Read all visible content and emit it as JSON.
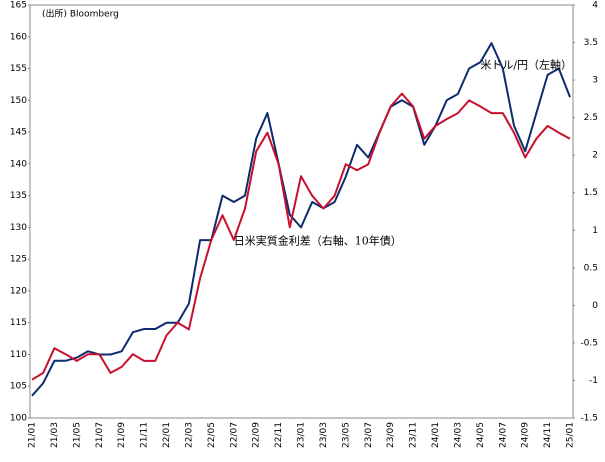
{
  "chart_data": {
    "type": "line",
    "source_note": "(出所) Bloomberg",
    "annotations": [
      {
        "text": "米ドル/円（左軸）",
        "color": "#1f3b8a",
        "x": 40,
        "y": 155.5
      },
      {
        "text": "日米実質金利差（右軸、10年債）",
        "color": "#c8102e",
        "x": 18,
        "y": 0.85
      }
    ],
    "categories": [
      "21/01",
      null,
      "21/03",
      null,
      "21/05",
      null,
      "21/07",
      null,
      "21/09",
      null,
      "21/11",
      null,
      "22/01",
      null,
      "22/03",
      null,
      "22/05",
      null,
      "22/07",
      null,
      "22/09",
      null,
      "22/11",
      null,
      "23/01",
      null,
      "23/03",
      null,
      "23/05",
      null,
      "23/07",
      null,
      "23/09",
      null,
      "23/11",
      null,
      "24/01",
      null,
      "24/03",
      null,
      "24/05",
      null,
      "24/07",
      null,
      "24/09",
      null,
      "24/11",
      null,
      "25/01"
    ],
    "series": [
      {
        "name": "米ドル/円（左軸）",
        "color": "#0d2b6e",
        "axis": "y",
        "values": [
          103.5,
          105.5,
          109,
          109,
          109.5,
          110.5,
          110,
          110,
          110.5,
          113.5,
          114,
          114,
          115,
          115,
          118,
          128,
          128,
          135,
          134,
          135,
          144,
          148,
          140,
          132,
          130,
          134,
          133,
          134,
          138,
          143,
          141,
          145,
          149,
          150,
          149,
          143,
          146,
          150,
          151,
          155,
          156,
          159,
          155,
          146,
          142,
          148,
          154,
          155,
          150.5
        ]
      },
      {
        "name": "日米実質金利差（右軸、10年債）",
        "color": "#c8102e",
        "axis": "y2",
        "values": [
          -0.99,
          -0.9,
          -0.57,
          -0.65,
          -0.74,
          -0.65,
          -0.65,
          -0.9,
          -0.82,
          -0.65,
          -0.74,
          -0.74,
          -0.4,
          -0.23,
          -0.32,
          0.36,
          0.87,
          1.2,
          0.87,
          1.29,
          2.05,
          2.3,
          1.88,
          1.04,
          1.72,
          1.46,
          1.29,
          1.46,
          1.88,
          1.8,
          1.88,
          2.3,
          2.65,
          2.82,
          2.65,
          2.22,
          2.39,
          2.48,
          2.56,
          2.73,
          2.65,
          2.56,
          2.56,
          2.3,
          1.97,
          2.22,
          2.39,
          2.3,
          2.22
        ]
      }
    ],
    "ylim": [
      100,
      165
    ],
    "yticks": [
      100,
      105,
      110,
      115,
      120,
      125,
      130,
      135,
      140,
      145,
      150,
      155,
      160,
      165
    ],
    "y2lim": [
      -1.5,
      4
    ],
    "y2ticks": [
      -1.5,
      -1,
      -0.5,
      0,
      0.5,
      1,
      1.5,
      2,
      2.5,
      3,
      3.5,
      4
    ]
  }
}
